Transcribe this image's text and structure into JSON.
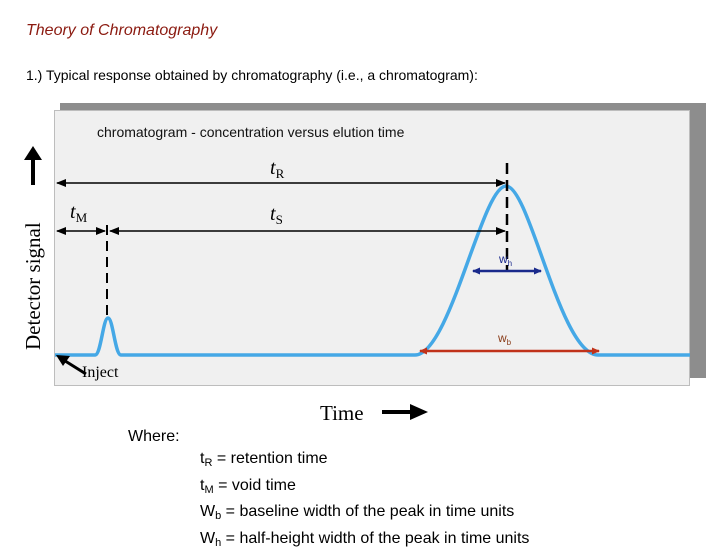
{
  "slide": {
    "title": "Theory of Chromatography",
    "point": "1.) Typical response obtained by chromatography (i.e., a chromatogram):"
  },
  "figure": {
    "caption": "chromatogram  - concentration versus elution time",
    "y_axis_label": "Detector signal",
    "x_axis_label": "Time",
    "inject_label": "Inject",
    "labels": {
      "tR_main": "t",
      "tR_sub": "R",
      "tM_main": "t",
      "tM_sub": "M",
      "tS_main": "t",
      "tS_sub": "S",
      "wh_main": "w",
      "wh_sub": "h",
      "wb_main": "w",
      "wb_sub": "b"
    },
    "colors": {
      "trace": "#45a8e6",
      "wh_arrow": "#1a2a8c",
      "wb_arrow": "#c0321a",
      "title": "#8b1a10"
    }
  },
  "definitions": {
    "where_label": "Where:",
    "items": [
      {
        "symbol": "t",
        "sub": "R",
        "text": " = retention time"
      },
      {
        "symbol": "t",
        "sub": "M",
        "text": " = void time"
      },
      {
        "symbol": "W",
        "sub": "b",
        "text": " = baseline width of the peak in time units"
      },
      {
        "symbol": "W",
        "sub": "h",
        "text": " = half-height width of the peak in time units"
      }
    ]
  }
}
